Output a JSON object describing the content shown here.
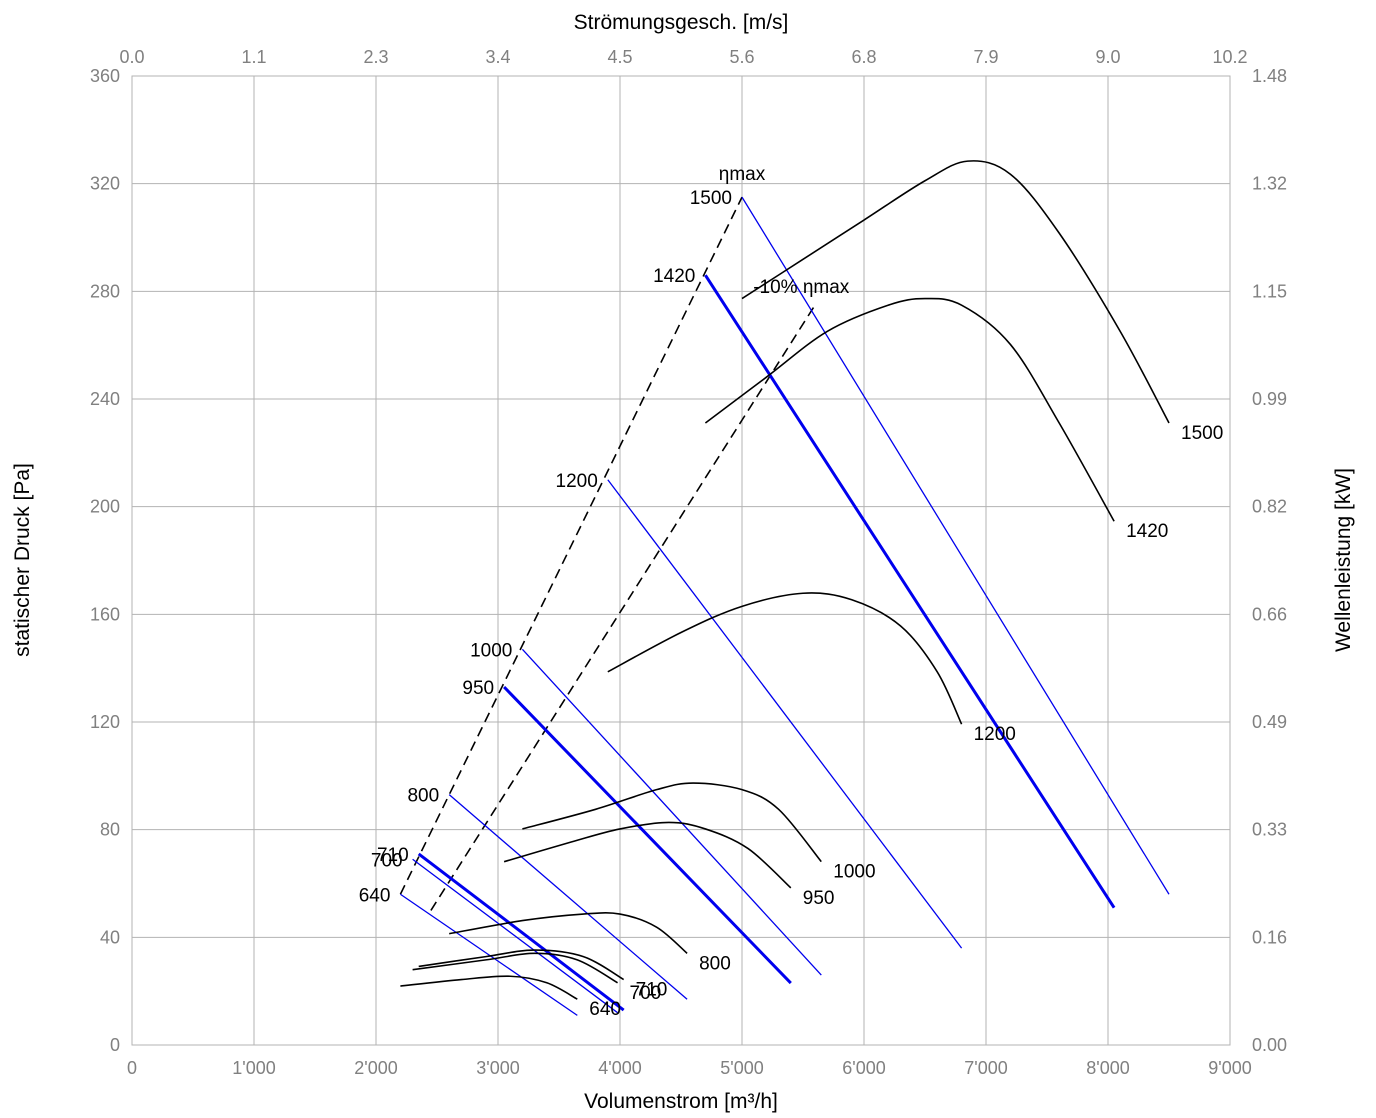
{
  "chart_data": {
    "type": "line",
    "title": "",
    "xlabel": "Volumenstrom [m³/h]",
    "x2label": "Strömungsgesch. [m/s]",
    "ylabel": "statischer Druck [Pa]",
    "y2label": "Wellenleistung [kW]",
    "xlim": [
      0,
      9000
    ],
    "ylim": [
      0,
      360
    ],
    "y2lim": [
      0,
      1.48
    ],
    "x_ticks": [
      0,
      1000,
      2000,
      3000,
      4000,
      5000,
      6000,
      7000,
      8000,
      9000
    ],
    "x_tick_labels": [
      "0",
      "1'000",
      "2'000",
      "3'000",
      "4'000",
      "5'000",
      "6'000",
      "7'000",
      "8'000",
      "9'000"
    ],
    "x2_tick_labels": [
      "0.0",
      "1.1",
      "2.3",
      "3.4",
      "4.5",
      "5.6",
      "6.8",
      "7.9",
      "9.0",
      "10.2"
    ],
    "y_ticks": [
      0,
      40,
      80,
      120,
      160,
      200,
      240,
      280,
      320,
      360
    ],
    "y_tick_labels": [
      "0",
      "40",
      "80",
      "120",
      "160",
      "200",
      "240",
      "280",
      "320",
      "360"
    ],
    "y2_tick_labels": [
      "0.00",
      "0.16",
      "0.33",
      "0.49",
      "0.66",
      "0.82",
      "0.99",
      "1.15",
      "1.32",
      "1.48"
    ],
    "grid": true,
    "colors": {
      "pressure": "#0000ee",
      "power": "#000000",
      "efficiency": "#000000",
      "grid": "#b3b3b3"
    },
    "pressure_curves": [
      {
        "label": "1500",
        "points": [
          [
            5000,
            315
          ],
          [
            8500,
            56
          ]
        ],
        "bold": false
      },
      {
        "label": "1420",
        "points": [
          [
            4700,
            286
          ],
          [
            8050,
            51
          ]
        ],
        "bold": true
      },
      {
        "label": "1200",
        "points": [
          [
            3900,
            210
          ],
          [
            6800,
            36
          ]
        ],
        "bold": false
      },
      {
        "label": "1000",
        "points": [
          [
            3200,
            147
          ],
          [
            5650,
            26
          ]
        ],
        "bold": false
      },
      {
        "label": "950",
        "points": [
          [
            3050,
            133
          ],
          [
            5400,
            23
          ]
        ],
        "bold": true
      },
      {
        "label": "800",
        "points": [
          [
            2600,
            93
          ],
          [
            4550,
            17
          ]
        ],
        "bold": false
      },
      {
        "label": "710",
        "points": [
          [
            2350,
            71
          ],
          [
            4030,
            13
          ]
        ],
        "bold": true
      },
      {
        "label": "700",
        "points": [
          [
            2300,
            69
          ],
          [
            3980,
            12
          ]
        ],
        "bold": false
      },
      {
        "label": "640",
        "points": [
          [
            2200,
            56
          ],
          [
            3650,
            11
          ]
        ],
        "bold": false
      }
    ],
    "power_curves": [
      {
        "label": "1500",
        "points": [
          [
            5000,
            1.14
          ],
          [
            5500,
            1.2
          ],
          [
            6000,
            1.26
          ],
          [
            6500,
            1.32
          ],
          [
            6850,
            1.35
          ],
          [
            7200,
            1.33
          ],
          [
            7600,
            1.24
          ],
          [
            8100,
            1.09
          ],
          [
            8500,
            0.95
          ]
        ]
      },
      {
        "label": "1420",
        "points": [
          [
            4700,
            0.95
          ],
          [
            5200,
            1.02
          ],
          [
            5700,
            1.09
          ],
          [
            6200,
            1.13
          ],
          [
            6500,
            1.14
          ],
          [
            6800,
            1.13
          ],
          [
            7200,
            1.07
          ],
          [
            7600,
            0.95
          ],
          [
            8050,
            0.8
          ]
        ]
      },
      {
        "label": "1200",
        "points": [
          [
            3900,
            0.57
          ],
          [
            4500,
            0.63
          ],
          [
            5000,
            0.67
          ],
          [
            5500,
            0.69
          ],
          [
            5900,
            0.68
          ],
          [
            6300,
            0.64
          ],
          [
            6600,
            0.57
          ],
          [
            6800,
            0.49
          ]
        ]
      },
      {
        "label": "1000",
        "points": [
          [
            3200,
            0.33
          ],
          [
            3800,
            0.36
          ],
          [
            4300,
            0.39
          ],
          [
            4600,
            0.4
          ],
          [
            5000,
            0.39
          ],
          [
            5300,
            0.36
          ],
          [
            5650,
            0.28
          ]
        ]
      },
      {
        "label": "950",
        "points": [
          [
            3050,
            0.28
          ],
          [
            3600,
            0.31
          ],
          [
            4000,
            0.33
          ],
          [
            4400,
            0.34
          ],
          [
            4700,
            0.33
          ],
          [
            5050,
            0.3
          ],
          [
            5400,
            0.24
          ]
        ]
      },
      {
        "label": "800",
        "points": [
          [
            2600,
            0.17
          ],
          [
            3200,
            0.19
          ],
          [
            3700,
            0.2
          ],
          [
            4000,
            0.2
          ],
          [
            4300,
            0.18
          ],
          [
            4550,
            0.14
          ]
        ]
      },
      {
        "label": "710",
        "points": [
          [
            2350,
            0.12
          ],
          [
            2900,
            0.135
          ],
          [
            3300,
            0.145
          ],
          [
            3700,
            0.135
          ],
          [
            4030,
            0.1
          ]
        ]
      },
      {
        "label": "700",
        "points": [
          [
            2300,
            0.115
          ],
          [
            2900,
            0.13
          ],
          [
            3300,
            0.14
          ],
          [
            3650,
            0.13
          ],
          [
            3980,
            0.095
          ]
        ]
      },
      {
        "label": "640",
        "points": [
          [
            2200,
            0.09
          ],
          [
            2700,
            0.1
          ],
          [
            3100,
            0.105
          ],
          [
            3400,
            0.095
          ],
          [
            3650,
            0.07
          ]
        ]
      }
    ],
    "efficiency_lines": [
      {
        "label": "ηmax",
        "points": [
          [
            2200,
            56
          ],
          [
            5000,
            315
          ]
        ]
      },
      {
        "label": "-10% ηmax",
        "points": [
          [
            2450,
            50
          ],
          [
            5600,
            275
          ]
        ]
      }
    ]
  }
}
